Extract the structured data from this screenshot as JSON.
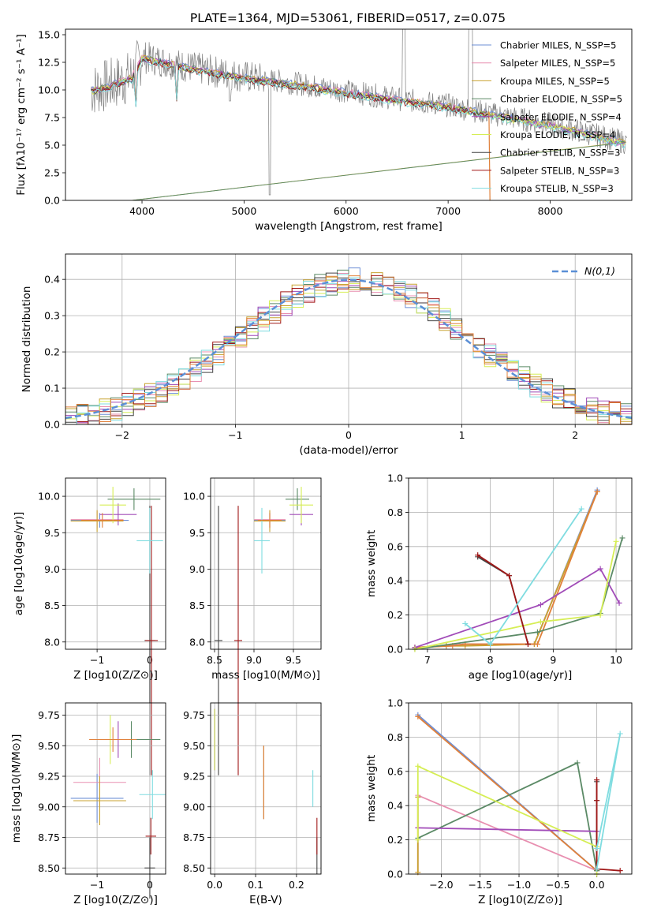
{
  "figure": {
    "title": "PLATE=1364, MJD=53061, FIBERID=0517, z=0.075"
  },
  "colors": {
    "Chabrier MILES": "#6d8fd6",
    "Salpeter MILES": "#e88fb0",
    "Kroupa MILES": "#c8a330",
    "Chabrier ELODIE": "#5b8a66",
    "Salpeter ELODIE": "#a14bb8",
    "Kroupa ELODIE": "#d6ee55",
    "Chabrier STELIB": "#444444",
    "Salpeter STELIB": "#a01818",
    "Kroupa STELIB": "#7fdce0",
    "orange": "#e0803a",
    "data": "#808080",
    "gauss": "#5b8fd6"
  },
  "chart_data": [
    {
      "type": "line",
      "panel": "spectrum",
      "title": "PLATE=1364, MJD=53061, FIBERID=0517, z=0.075",
      "xlabel": "wavelength [Angstrom, rest frame]",
      "ylabel": "Flux [fλ10⁻¹⁷ erg cm⁻² s⁻¹ A⁻¹]",
      "xlim": [
        3250,
        8800
      ],
      "ylim": [
        0,
        15.5
      ],
      "xticks": [
        4000,
        5000,
        6000,
        7000,
        8000
      ],
      "yticks": [
        "0.0",
        "2.5",
        "5.0",
        "7.5",
        "10.0",
        "12.5",
        "15.0"
      ],
      "legend_position": "top-right",
      "legend": [
        "Chabrier MILES, N_SSP=5",
        "Salpeter MILES, N_SSP=5",
        "Kroupa MILES, N_SSP=5",
        "Chabrier ELODIE, N_SSP=5",
        "Salpeter ELODIE, N_SSP=4",
        "Kroupa ELODIE, N_SSP=4",
        "Chabrier STELIB, N_SSP=3",
        "Salpeter STELIB, N_SSP=3",
        "Kroupa STELIB, N_SSP=3"
      ],
      "model_continuum": [
        [
          3500,
          10.0
        ],
        [
          3700,
          10.5
        ],
        [
          3900,
          11.2
        ],
        [
          4000,
          13.0
        ],
        [
          4200,
          12.6
        ],
        [
          4500,
          12.0
        ],
        [
          5000,
          11.2
        ],
        [
          5500,
          10.6
        ],
        [
          6000,
          9.9
        ],
        [
          6500,
          9.2
        ],
        [
          7000,
          8.6
        ],
        [
          7500,
          7.7
        ],
        [
          8000,
          6.9
        ],
        [
          8500,
          5.8
        ],
        [
          8800,
          5.1
        ]
      ]
    },
    {
      "type": "bar",
      "panel": "residual-histogram",
      "xlabel": "(data-model)/error",
      "ylabel": "Normed distribution",
      "xlim": [
        -2.5,
        2.5
      ],
      "ylim": [
        0,
        0.47
      ],
      "xticks": [
        "−2",
        "−1",
        "0",
        "1",
        "2"
      ],
      "yticks": [
        "0.0",
        "0.1",
        "0.2",
        "0.3",
        "0.4"
      ],
      "legend_position": "top-right",
      "gaussian_label": "N(0,1)"
    },
    {
      "type": "scatter",
      "panel": "age-vs-Z",
      "xlabel": "Z [log10(Z/Z⊙)]",
      "ylabel": "age [log10(age/yr)]",
      "xlim": [
        -1.6,
        0.3
      ],
      "ylim": [
        7.9,
        10.25
      ],
      "xticks": [
        "−1",
        "0"
      ],
      "yticks": [
        "8.0",
        "8.5",
        "9.0",
        "9.5",
        "10.0"
      ],
      "points": [
        {
          "series": "Chabrier MILES",
          "x": -0.95,
          "y": 9.67,
          "xerr": 0.55,
          "yerr": 0.1
        },
        {
          "series": "Salpeter MILES",
          "x": -1.0,
          "y": 9.68,
          "xerr": 0.5,
          "yerr": 0.12
        },
        {
          "series": "Kroupa MILES",
          "x": -1.0,
          "y": 9.66,
          "xerr": 0.5,
          "yerr": 0.15
        },
        {
          "series": "Chabrier ELODIE",
          "x": -0.3,
          "y": 9.96,
          "xerr": 0.5,
          "yerr": 0.15
        },
        {
          "series": "Salpeter ELODIE",
          "x": -0.6,
          "y": 9.75,
          "xerr": 0.35,
          "yerr": 0.15
        },
        {
          "series": "Kroupa ELODIE",
          "x": -0.7,
          "y": 9.88,
          "xerr": 0.25,
          "yerr": 0.25
        },
        {
          "series": "Chabrier STELIB",
          "x": 0.0,
          "y": 8.02,
          "xerr": 0.1,
          "yerr": 1.85
        },
        {
          "series": "Salpeter STELIB",
          "x": 0.03,
          "y": 8.02,
          "xerr": 0.12,
          "yerr": 1.85
        },
        {
          "series": "Kroupa STELIB",
          "x": 0.0,
          "y": 9.39,
          "xerr": 0.25,
          "yerr": 0.45
        },
        {
          "series": "orange",
          "x": -0.9,
          "y": 9.67,
          "xerr": 0.4,
          "yerr": 0.1
        }
      ]
    },
    {
      "type": "scatter",
      "panel": "age-vs-mass",
      "xlabel": "mass [log10(M/M⊙)]",
      "ylabel": "",
      "xlim": [
        8.45,
        9.85
      ],
      "ylim": [
        7.9,
        10.25
      ],
      "xticks": [
        "8.5",
        "9.0",
        "9.5"
      ],
      "yticks": [
        "8.0",
        "8.5",
        "9.0",
        "9.5",
        "10.0"
      ],
      "points": [
        {
          "series": "Chabrier MILES",
          "x": 9.2,
          "y": 9.67,
          "xerr": 0.2,
          "yerr": 0.1
        },
        {
          "series": "Salpeter MILES",
          "x": 9.2,
          "y": 9.68,
          "xerr": 0.2,
          "yerr": 0.12
        },
        {
          "series": "Kroupa MILES",
          "x": 9.2,
          "y": 9.66,
          "xerr": 0.2,
          "yerr": 0.15
        },
        {
          "series": "Chabrier ELODIE",
          "x": 9.55,
          "y": 9.96,
          "xerr": 0.15,
          "yerr": 0.15
        },
        {
          "series": "Salpeter ELODIE",
          "x": 9.6,
          "y": 9.75,
          "xerr": 0.15,
          "yerr": 0.15
        },
        {
          "series": "Kroupa ELODIE",
          "x": 9.6,
          "y": 9.88,
          "xerr": 0.15,
          "yerr": 0.25
        },
        {
          "series": "Chabrier STELIB",
          "x": 8.55,
          "y": 8.02,
          "xerr": 0.05,
          "yerr": 1.85
        },
        {
          "series": "Salpeter STELIB",
          "x": 8.8,
          "y": 8.02,
          "xerr": 0.05,
          "yerr": 1.85
        },
        {
          "series": "Kroupa STELIB",
          "x": 9.1,
          "y": 9.39,
          "xerr": 0.1,
          "yerr": 0.45
        },
        {
          "series": "orange",
          "x": 9.2,
          "y": 9.67,
          "xerr": 0.15,
          "yerr": 0.1
        }
      ]
    },
    {
      "type": "line",
      "panel": "mass-weight-vs-age",
      "xlabel": "age [log10(age/yr)]",
      "ylabel": "mass weight",
      "xlim": [
        6.7,
        10.25
      ],
      "ylim": [
        0,
        1.0
      ],
      "xticks": [
        "7",
        "8",
        "9",
        "10"
      ],
      "yticks": [
        "0.0",
        "0.2",
        "0.4",
        "0.6",
        "0.8",
        "1.0"
      ],
      "series": [
        {
          "name": "Chabrier MILES",
          "x": [
            6.8,
            7.3,
            7.6,
            8.7,
            9.7
          ],
          "y": [
            0.01,
            0.02,
            0.03,
            0.03,
            0.93
          ]
        },
        {
          "name": "Salpeter MILES",
          "x": [
            6.8,
            7.3,
            7.6,
            8.7,
            9.7
          ],
          "y": [
            0.01,
            0.02,
            0.03,
            0.03,
            0.92
          ]
        },
        {
          "name": "Kroupa MILES",
          "x": [
            6.8,
            7.3,
            7.6,
            8.7,
            9.7
          ],
          "y": [
            0.01,
            0.02,
            0.02,
            0.03,
            0.92
          ]
        },
        {
          "name": "orange",
          "x": [
            6.8,
            7.4,
            7.6,
            8.75,
            9.7
          ],
          "y": [
            0.01,
            0.02,
            0.03,
            0.03,
            0.92
          ]
        },
        {
          "name": "Chabrier ELODIE",
          "x": [
            6.8,
            8.75,
            9.75,
            10.1
          ],
          "y": [
            0.0,
            0.1,
            0.21,
            0.65
          ]
        },
        {
          "name": "Salpeter ELODIE",
          "x": [
            6.8,
            8.8,
            9.75,
            10.05
          ],
          "y": [
            0.01,
            0.26,
            0.47,
            0.27
          ]
        },
        {
          "name": "Kroupa ELODIE",
          "x": [
            6.8,
            8.8,
            9.75,
            10.0
          ],
          "y": [
            0.0,
            0.16,
            0.2,
            0.63
          ]
        },
        {
          "name": "Chabrier STELIB",
          "x": [
            7.8,
            8.3,
            8.6
          ],
          "y": [
            0.54,
            0.43,
            0.03
          ]
        },
        {
          "name": "Salpeter STELIB",
          "x": [
            7.8,
            8.3,
            8.6
          ],
          "y": [
            0.55,
            0.43,
            0.03
          ]
        },
        {
          "name": "Kroupa STELIB",
          "x": [
            7.6,
            8.0,
            9.45
          ],
          "y": [
            0.15,
            0.03,
            0.82
          ]
        }
      ]
    },
    {
      "type": "scatter",
      "panel": "mass-vs-Z",
      "xlabel": "Z [log10(Z/Z⊙)]",
      "ylabel": "mass [log10(M/M⊙)]",
      "xlim": [
        -1.6,
        0.3
      ],
      "ylim": [
        8.45,
        9.85
      ],
      "xticks": [
        "−1",
        "0"
      ],
      "yticks": [
        "8.50",
        "8.75",
        "9.00",
        "9.25",
        "9.50",
        "9.75"
      ],
      "points": [
        {
          "series": "Chabrier MILES",
          "x": -1.0,
          "y": 9.07,
          "xerr": 0.5,
          "yerr": 0.2
        },
        {
          "series": "Salpeter MILES",
          "x": -0.95,
          "y": 9.2,
          "xerr": 0.5,
          "yerr": 0.2
        },
        {
          "series": "Kroupa MILES",
          "x": -0.95,
          "y": 9.05,
          "xerr": 0.5,
          "yerr": 0.2
        },
        {
          "series": "Chabrier ELODIE",
          "x": -0.35,
          "y": 9.55,
          "xerr": 0.55,
          "yerr": 0.15
        },
        {
          "series": "Salpeter ELODIE",
          "x": -0.6,
          "y": 9.55,
          "xerr": 0.35,
          "yerr": 0.15
        },
        {
          "series": "Kroupa ELODIE",
          "x": -0.75,
          "y": 9.55,
          "xerr": 0.25,
          "yerr": 0.2
        },
        {
          "series": "Chabrier STELIB",
          "x": 0.0,
          "y": 8.5,
          "xerr": 0.1,
          "yerr": 0.25
        },
        {
          "series": "Salpeter STELIB",
          "x": 0.02,
          "y": 8.76,
          "xerr": 0.1,
          "yerr": 0.15
        },
        {
          "series": "Kroupa STELIB",
          "x": 0.05,
          "y": 9.1,
          "xerr": 0.25,
          "yerr": 0.2
        },
        {
          "series": "orange",
          "x": -0.7,
          "y": 9.55,
          "xerr": 0.45,
          "yerr": 0.1
        }
      ]
    },
    {
      "type": "scatter",
      "panel": "mass-vs-EBV",
      "xlabel": "E(B-V)",
      "ylabel": "",
      "xlim": [
        -0.01,
        0.26
      ],
      "ylim": [
        8.45,
        9.85
      ],
      "xticks": [
        "0.0",
        "0.1",
        "0.2"
      ],
      "yticks": [
        "8.50",
        "8.75",
        "9.00",
        "9.25",
        "9.50",
        "9.75"
      ],
      "points": [
        {
          "series": "Chabrier MILES",
          "x": 0.12,
          "y": 9.2,
          "xerr": 0,
          "yerr": 0.3
        },
        {
          "series": "Kroupa MILES",
          "x": 0.12,
          "y": 9.2,
          "xerr": 0,
          "yerr": 0.3
        },
        {
          "series": "orange",
          "x": 0.12,
          "y": 9.2,
          "xerr": 0,
          "yerr": 0.3
        },
        {
          "series": "Chabrier ELODIE",
          "x": 0.0,
          "y": 9.55,
          "xerr": 0,
          "yerr": 0.25
        },
        {
          "series": "Salpeter ELODIE",
          "x": 0.0,
          "y": 9.55,
          "xerr": 0,
          "yerr": 0.25
        },
        {
          "series": "Kroupa ELODIE",
          "x": 0.0,
          "y": 9.55,
          "xerr": 0,
          "yerr": 0.25
        },
        {
          "series": "Chabrier STELIB",
          "x": 0.25,
          "y": 8.6,
          "xerr": 0,
          "yerr": 0.15
        },
        {
          "series": "Salpeter STELIB",
          "x": 0.25,
          "y": 8.76,
          "xerr": 0,
          "yerr": 0.15
        },
        {
          "series": "Kroupa STELIB",
          "x": 0.24,
          "y": 9.15,
          "xerr": 0,
          "yerr": 0.15
        }
      ]
    },
    {
      "type": "line",
      "panel": "mass-weight-vs-Z",
      "xlabel": "Z [log10(Z/Z⊙)]",
      "ylabel": "mass weight",
      "xlim": [
        -2.42,
        0.45
      ],
      "ylim": [
        0,
        1.0
      ],
      "xticks": [
        "−2.0",
        "−1.5",
        "−1.0",
        "−0.5",
        "0.0"
      ],
      "yticks": [
        "0.0",
        "0.2",
        "0.4",
        "0.6",
        "0.8",
        "1.0"
      ],
      "series": [
        {
          "name": "Chabrier MILES",
          "x": [
            -2.3,
            0.0
          ],
          "y": [
            0.93,
            0.02
          ]
        },
        {
          "name": "Salpeter MILES",
          "x": [
            -2.3,
            -2.3,
            0.0
          ],
          "y": [
            0.01,
            0.46,
            0.02
          ]
        },
        {
          "name": "Kroupa MILES",
          "x": [
            -2.3,
            -2.3
          ],
          "y": [
            0.01,
            0.45
          ]
        },
        {
          "name": "orange",
          "x": [
            -2.3,
            0.0
          ],
          "y": [
            0.92,
            0.02
          ]
        },
        {
          "name": "Chabrier ELODIE",
          "x": [
            -2.3,
            -0.25,
            0.0
          ],
          "y": [
            0.21,
            0.65,
            0.02
          ]
        },
        {
          "name": "Salpeter ELODIE",
          "x": [
            -2.3,
            0.0,
            0.0
          ],
          "y": [
            0.27,
            0.25,
            0.0
          ]
        },
        {
          "name": "Kroupa ELODIE",
          "x": [
            -2.3,
            -2.3,
            0.0,
            0.0
          ],
          "y": [
            0.2,
            0.63,
            0.16,
            0.0
          ]
        },
        {
          "name": "Chabrier STELIB",
          "x": [
            0.0,
            0.0,
            0.0
          ],
          "y": [
            0.03,
            0.43,
            0.54
          ]
        },
        {
          "name": "Salpeter STELIB",
          "x": [
            0.0,
            0.0,
            0.0,
            0.3
          ],
          "y": [
            0.55,
            0.43,
            0.03,
            0.02
          ]
        },
        {
          "name": "Kroupa STELIB",
          "x": [
            0.0,
            0.3,
            0.0
          ],
          "y": [
            0.03,
            0.82,
            0.15
          ]
        }
      ]
    }
  ]
}
